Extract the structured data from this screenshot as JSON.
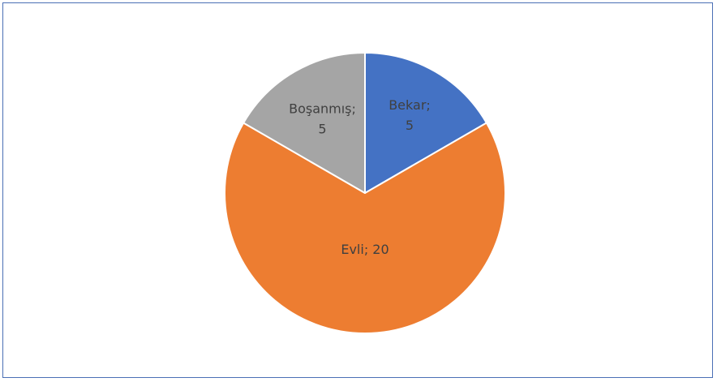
{
  "chart_data": {
    "type": "pie",
    "title": "",
    "categories": [
      "Bekar",
      "Evli",
      "Boşanmış"
    ],
    "values": [
      5,
      20,
      5
    ],
    "colors": [
      "#4472c4",
      "#ed7d31",
      "#a5a5a5"
    ],
    "data_labels": [
      [
        "Bekar;",
        "5"
      ],
      [
        "Evli; 20"
      ],
      [
        "Boşanmış;",
        "5"
      ]
    ],
    "start_angle_deg": 0,
    "direction": "clockwise",
    "legend": "none"
  }
}
